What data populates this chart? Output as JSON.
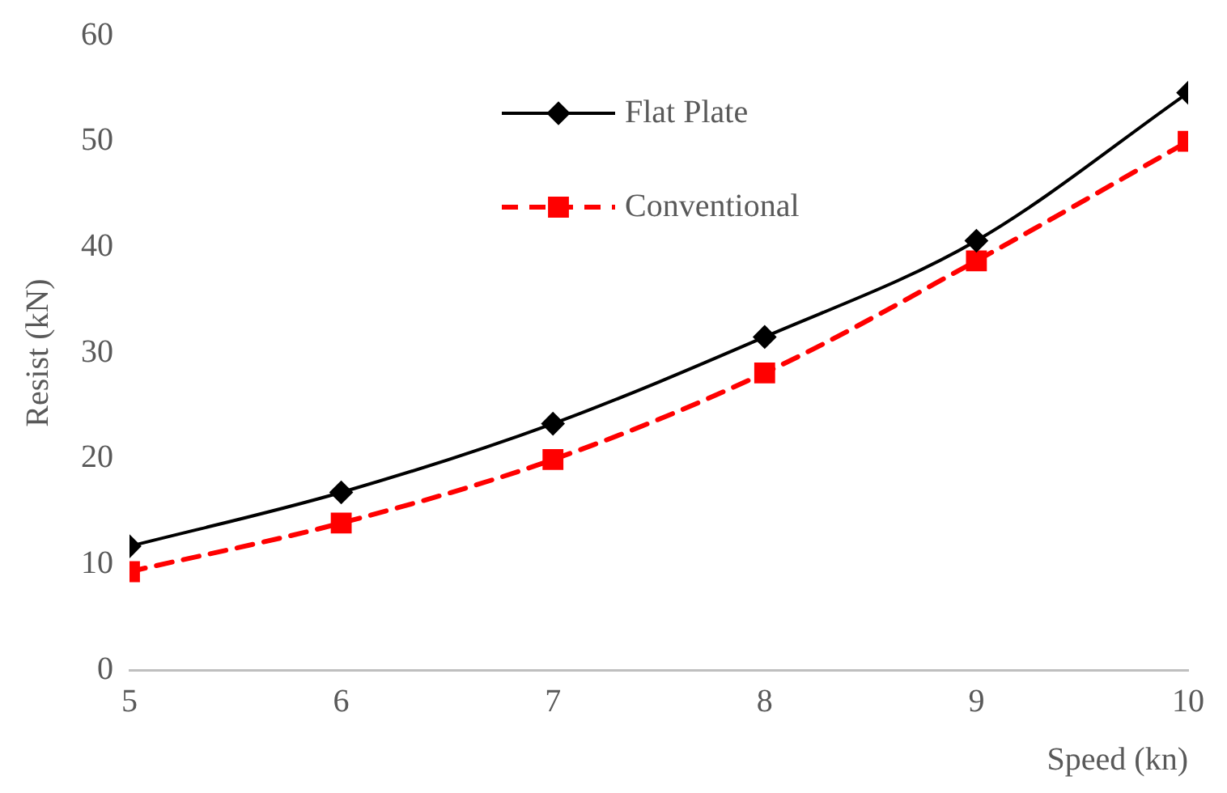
{
  "chart_data": {
    "type": "line",
    "xlabel": "Speed (kn)",
    "ylabel": "Resist (kN)",
    "x": [
      5,
      6,
      7,
      8,
      9,
      10
    ],
    "series": [
      {
        "name": "Flat Plate",
        "color": "#000000",
        "values": [
          11.7,
          16.8,
          23.3,
          31.5,
          40.6,
          54.6
        ],
        "marker": "diamond",
        "line_style": "solid"
      },
      {
        "name": "Conventional",
        "color": "#ff0000",
        "values": [
          9.3,
          13.9,
          19.9,
          28.1,
          38.7,
          50.0
        ],
        "marker": "square",
        "line_style": "dashed"
      }
    ],
    "xlim": [
      5,
      10
    ],
    "xticks": [
      5,
      6,
      7,
      8,
      9,
      10
    ],
    "ylim": [
      0,
      60
    ],
    "yticks": [
      0,
      10,
      20,
      30,
      40,
      50,
      60
    ],
    "grid": false,
    "legend": "top"
  }
}
